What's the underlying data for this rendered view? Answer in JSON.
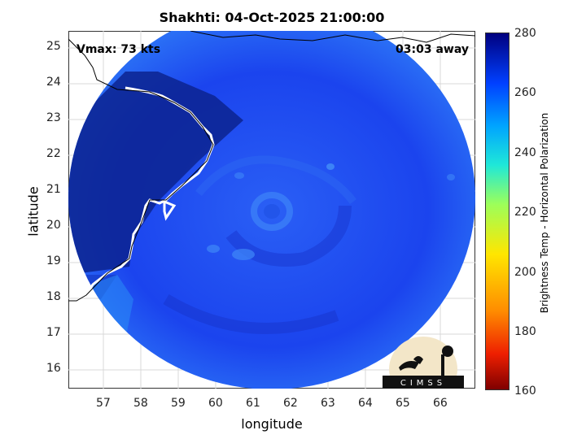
{
  "title": "Shakhti: 04-Oct-2025 21:00:00",
  "annotations": {
    "vmax": "Vmax: 73 kts",
    "time_away": "03:03 away"
  },
  "axes": {
    "xlabel": "longitude",
    "ylabel": "latitude",
    "xticks": [
      "57",
      "58",
      "59",
      "60",
      "61",
      "62",
      "63",
      "64",
      "65",
      "66"
    ],
    "yticks": [
      "25",
      "24",
      "23",
      "22",
      "21",
      "20",
      "19",
      "18",
      "17",
      "16"
    ],
    "xlim": [
      56.15,
      66.75
    ],
    "ylim": [
      15.5,
      25.5
    ],
    "grid": true
  },
  "colorbar": {
    "label": "Brightness Temp - Horizontal Polarization",
    "ticks": [
      "280",
      "260",
      "240",
      "220",
      "200",
      "180",
      "160"
    ],
    "range": [
      160,
      280
    ],
    "colormap": "jet"
  },
  "logo": {
    "text": "CIMSS"
  },
  "colors": {
    "field_base": "#1e4ff2",
    "field_dark": "#0b1f8a",
    "coast": "#ffffff",
    "land_line": "#000000"
  }
}
